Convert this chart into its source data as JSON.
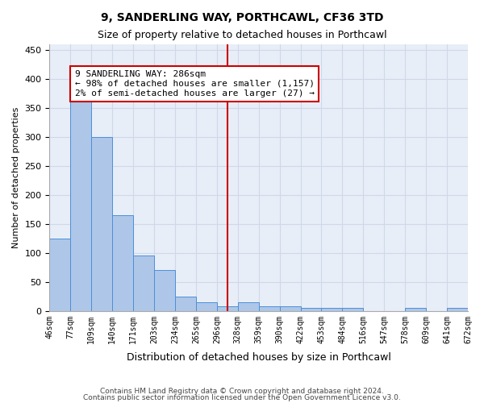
{
  "title1": "9, SANDERLING WAY, PORTHCAWL, CF36 3TD",
  "title2": "Size of property relative to detached houses in Porthcawl",
  "xlabel": "Distribution of detached houses by size in Porthcawl",
  "ylabel": "Number of detached properties",
  "bar_values": [
    125,
    365,
    300,
    165,
    95,
    70,
    25,
    15,
    8,
    15,
    8,
    8,
    5,
    5,
    5,
    0,
    0,
    5,
    0,
    5
  ],
  "bin_labels": [
    "46sqm",
    "77sqm",
    "109sqm",
    "140sqm",
    "171sqm",
    "203sqm",
    "234sqm",
    "265sqm",
    "296sqm",
    "328sqm",
    "359sqm",
    "390sqm",
    "422sqm",
    "453sqm",
    "484sqm",
    "516sqm",
    "547sqm",
    "578sqm",
    "609sqm",
    "641sqm",
    "672sqm"
  ],
  "bar_color": "#aec6e8",
  "bar_edge_color": "#4a90d9",
  "grid_color": "#d0d8e8",
  "bg_color": "#e8eef8",
  "vline_x": 8,
  "vline_color": "#cc0000",
  "annotation_text": "9 SANDERLING WAY: 286sqm\n← 98% of detached houses are smaller (1,157)\n2% of semi-detached houses are larger (27) →",
  "annotation_box_color": "#ffffff",
  "annotation_box_edge": "#cc0000",
  "ylim": [
    0,
    460
  ],
  "yticks": [
    0,
    50,
    100,
    150,
    200,
    250,
    300,
    350,
    400,
    450
  ],
  "footer1": "Contains HM Land Registry data © Crown copyright and database right 2024.",
  "footer2": "Contains public sector information licensed under the Open Government Licence v3.0."
}
